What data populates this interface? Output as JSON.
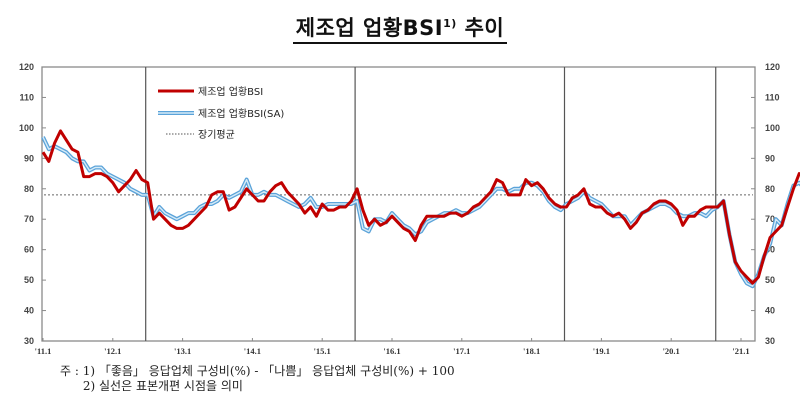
{
  "title": {
    "main": "제조업 업황BSI",
    "sup": "1)",
    "suffix": "추이"
  },
  "legend": [
    {
      "label": "제조업 업황BSI",
      "color": "#C00000",
      "style": "solid"
    },
    {
      "label": "제조업 업황BSI(SA)",
      "color": "#5BA3D9",
      "style": "solid"
    },
    {
      "label": "장기평균",
      "color": "#555555",
      "style": "dotted"
    }
  ],
  "notes": [
    "주 : 1) 「좋음」 응답업체 구성비(%) - 「나쁨」 응답업체 구성비(%) + 100",
    "      2) 실선은 표본개편 시점을 의미"
  ],
  "chart_data": {
    "type": "line",
    "title": "제조업 업황BSI 추이",
    "xlabel": "",
    "ylabel": "",
    "ylim": [
      30,
      120
    ],
    "yticks": [
      30,
      40,
      50,
      60,
      70,
      80,
      90,
      100,
      110,
      120
    ],
    "xtick_labels": [
      "'11.1",
      "'12.1",
      "'13.1",
      "'14.1",
      "'15.1",
      "'16.1",
      "'17.1",
      "'18.1",
      "'19.1",
      "'20.1",
      "'21.1"
    ],
    "x_start": "2011.1",
    "x_end": "2021.4",
    "long_term_average": 78,
    "sample_revision_markers": [
      "2012.7",
      "2015.7",
      "2018.7",
      "2020.9"
    ],
    "legend_position": "upper-left-inside",
    "grid": false,
    "series": [
      {
        "name": "제조업 업황BSI",
        "color": "#C00000",
        "values": [
          92,
          89,
          95,
          99,
          96,
          93,
          92,
          84,
          84,
          85,
          85,
          84,
          82,
          79,
          81,
          83,
          86,
          83,
          82,
          70,
          72,
          70,
          68,
          67,
          67,
          68,
          70,
          72,
          74,
          78,
          79,
          79,
          73,
          74,
          77,
          80,
          78,
          76,
          76,
          79,
          81,
          82,
          79,
          77,
          75,
          72,
          74,
          71,
          75,
          73,
          73,
          74,
          74,
          76,
          80,
          73,
          68,
          70,
          68,
          69,
          71,
          69,
          67,
          66,
          63,
          68,
          71,
          71,
          71,
          71,
          72,
          72,
          71,
          72,
          74,
          75,
          77,
          79,
          83,
          82,
          78,
          78,
          78,
          83,
          81,
          82,
          80,
          77,
          75,
          74,
          74,
          77,
          78,
          80,
          75,
          74,
          74,
          72,
          71,
          72,
          70,
          67,
          69,
          72,
          73,
          75,
          76,
          76,
          75,
          73,
          68,
          71,
          71,
          73,
          74,
          74,
          74,
          76,
          65,
          56,
          53,
          51,
          49,
          51,
          58,
          64,
          66,
          68,
          74,
          80,
          85,
          84,
          82,
          85,
          83,
          89
        ]
      },
      {
        "name": "제조업 업황BSI(SA)",
        "color": "#5BA3D9",
        "values": [
          97,
          93,
          94,
          93,
          92,
          90,
          89,
          89,
          86,
          87,
          87,
          85,
          84,
          83,
          82,
          80,
          79,
          78,
          78,
          71,
          74,
          72,
          71,
          70,
          71,
          72,
          72,
          74,
          75,
          75,
          76,
          78,
          77,
          78,
          79,
          83,
          78,
          78,
          79,
          78,
          78,
          77,
          76,
          75,
          74,
          75,
          77,
          74,
          74,
          75,
          75,
          75,
          75,
          75,
          76,
          67,
          66,
          70,
          70,
          69,
          72,
          70,
          68,
          67,
          65,
          66,
          69,
          70,
          71,
          72,
          72,
          73,
          72,
          72,
          73,
          74,
          76,
          78,
          80,
          80,
          79,
          80,
          80,
          82,
          82,
          81,
          79,
          76,
          74,
          73,
          75,
          76,
          77,
          79,
          77,
          76,
          75,
          73,
          71,
          71,
          71,
          68,
          70,
          72,
          73,
          74,
          75,
          75,
          74,
          72,
          71,
          71,
          72,
          72,
          71,
          73,
          74,
          76,
          65,
          56,
          52,
          49,
          48,
          52,
          58,
          62,
          70,
          68,
          75,
          81,
          82,
          80,
          84,
          82,
          84,
          89
        ]
      }
    ]
  }
}
